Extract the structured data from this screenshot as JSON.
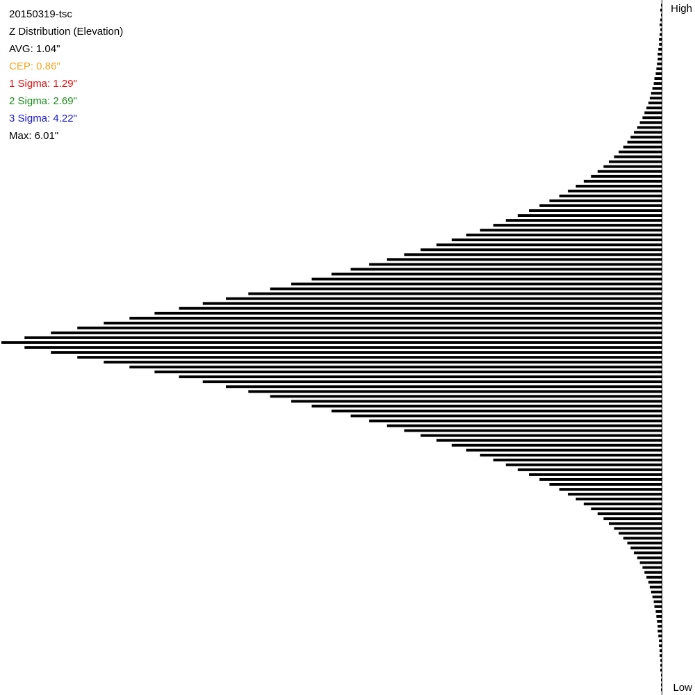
{
  "session": "20150319-tsc",
  "title": "Z Distribution (Elevation)",
  "stats": [
    {
      "key": "avg",
      "text": "AVG: 1.04\"",
      "color": "#000000"
    },
    {
      "key": "cep",
      "text": "CEP: 0.86\"",
      "color": "#f5a623"
    },
    {
      "key": "sigma1",
      "text": "1 Sigma: 1.29\"",
      "color": "#e01010"
    },
    {
      "key": "sigma2",
      "text": "2 Sigma: 2.69\"",
      "color": "#1a8a1a"
    },
    {
      "key": "sigma3",
      "text": "3 Sigma: 4.22\"",
      "color": "#1a1acc"
    },
    {
      "key": "max",
      "text": "Max: 6.01\"",
      "color": "#000000"
    }
  ],
  "axis": {
    "high_label": "High",
    "low_label": "Low"
  },
  "chart_data": {
    "type": "bar",
    "orientation": "horizontal",
    "direction": "bars extend leftward from a vertical baseline on the right",
    "title": "Z Distribution (Elevation)",
    "xlabel": "",
    "ylabel": "",
    "y_tick_labels": [
      "High",
      "Low"
    ],
    "xlim": [
      0,
      1
    ],
    "value_units": "relative frequency (peak = 1)",
    "bins_high_to_low": [
      0.001,
      0.002,
      0.001,
      0.002,
      0.003,
      0.002,
      0.003,
      0.004,
      0.004,
      0.005,
      0.006,
      0.006,
      0.007,
      0.008,
      0.009,
      0.011,
      0.012,
      0.014,
      0.016,
      0.018,
      0.02,
      0.023,
      0.026,
      0.029,
      0.033,
      0.037,
      0.042,
      0.047,
      0.052,
      0.058,
      0.065,
      0.072,
      0.08,
      0.088,
      0.097,
      0.107,
      0.118,
      0.13,
      0.142,
      0.155,
      0.17,
      0.185,
      0.201,
      0.218,
      0.236,
      0.255,
      0.275,
      0.296,
      0.318,
      0.341,
      0.365,
      0.39,
      0.416,
      0.443,
      0.471,
      0.5,
      0.53,
      0.561,
      0.593,
      0.626,
      0.66,
      0.695,
      0.731,
      0.768,
      0.806,
      0.845,
      0.885,
      0.925,
      0.965,
      1.0,
      0.965,
      0.925,
      0.885,
      0.845,
      0.806,
      0.768,
      0.731,
      0.695,
      0.66,
      0.626,
      0.593,
      0.561,
      0.53,
      0.5,
      0.471,
      0.443,
      0.416,
      0.39,
      0.365,
      0.341,
      0.318,
      0.296,
      0.275,
      0.255,
      0.236,
      0.218,
      0.201,
      0.185,
      0.17,
      0.155,
      0.142,
      0.13,
      0.118,
      0.107,
      0.097,
      0.088,
      0.08,
      0.072,
      0.065,
      0.058,
      0.052,
      0.047,
      0.042,
      0.037,
      0.033,
      0.029,
      0.026,
      0.023,
      0.02,
      0.018,
      0.016,
      0.014,
      0.012,
      0.011,
      0.009,
      0.008,
      0.007,
      0.006,
      0.006,
      0.005,
      0.004,
      0.004,
      0.003,
      0.003,
      0.002,
      0.002,
      0.002,
      0.001,
      0.001,
      0.001,
      0.001
    ],
    "legend": "none",
    "grid": false
  }
}
